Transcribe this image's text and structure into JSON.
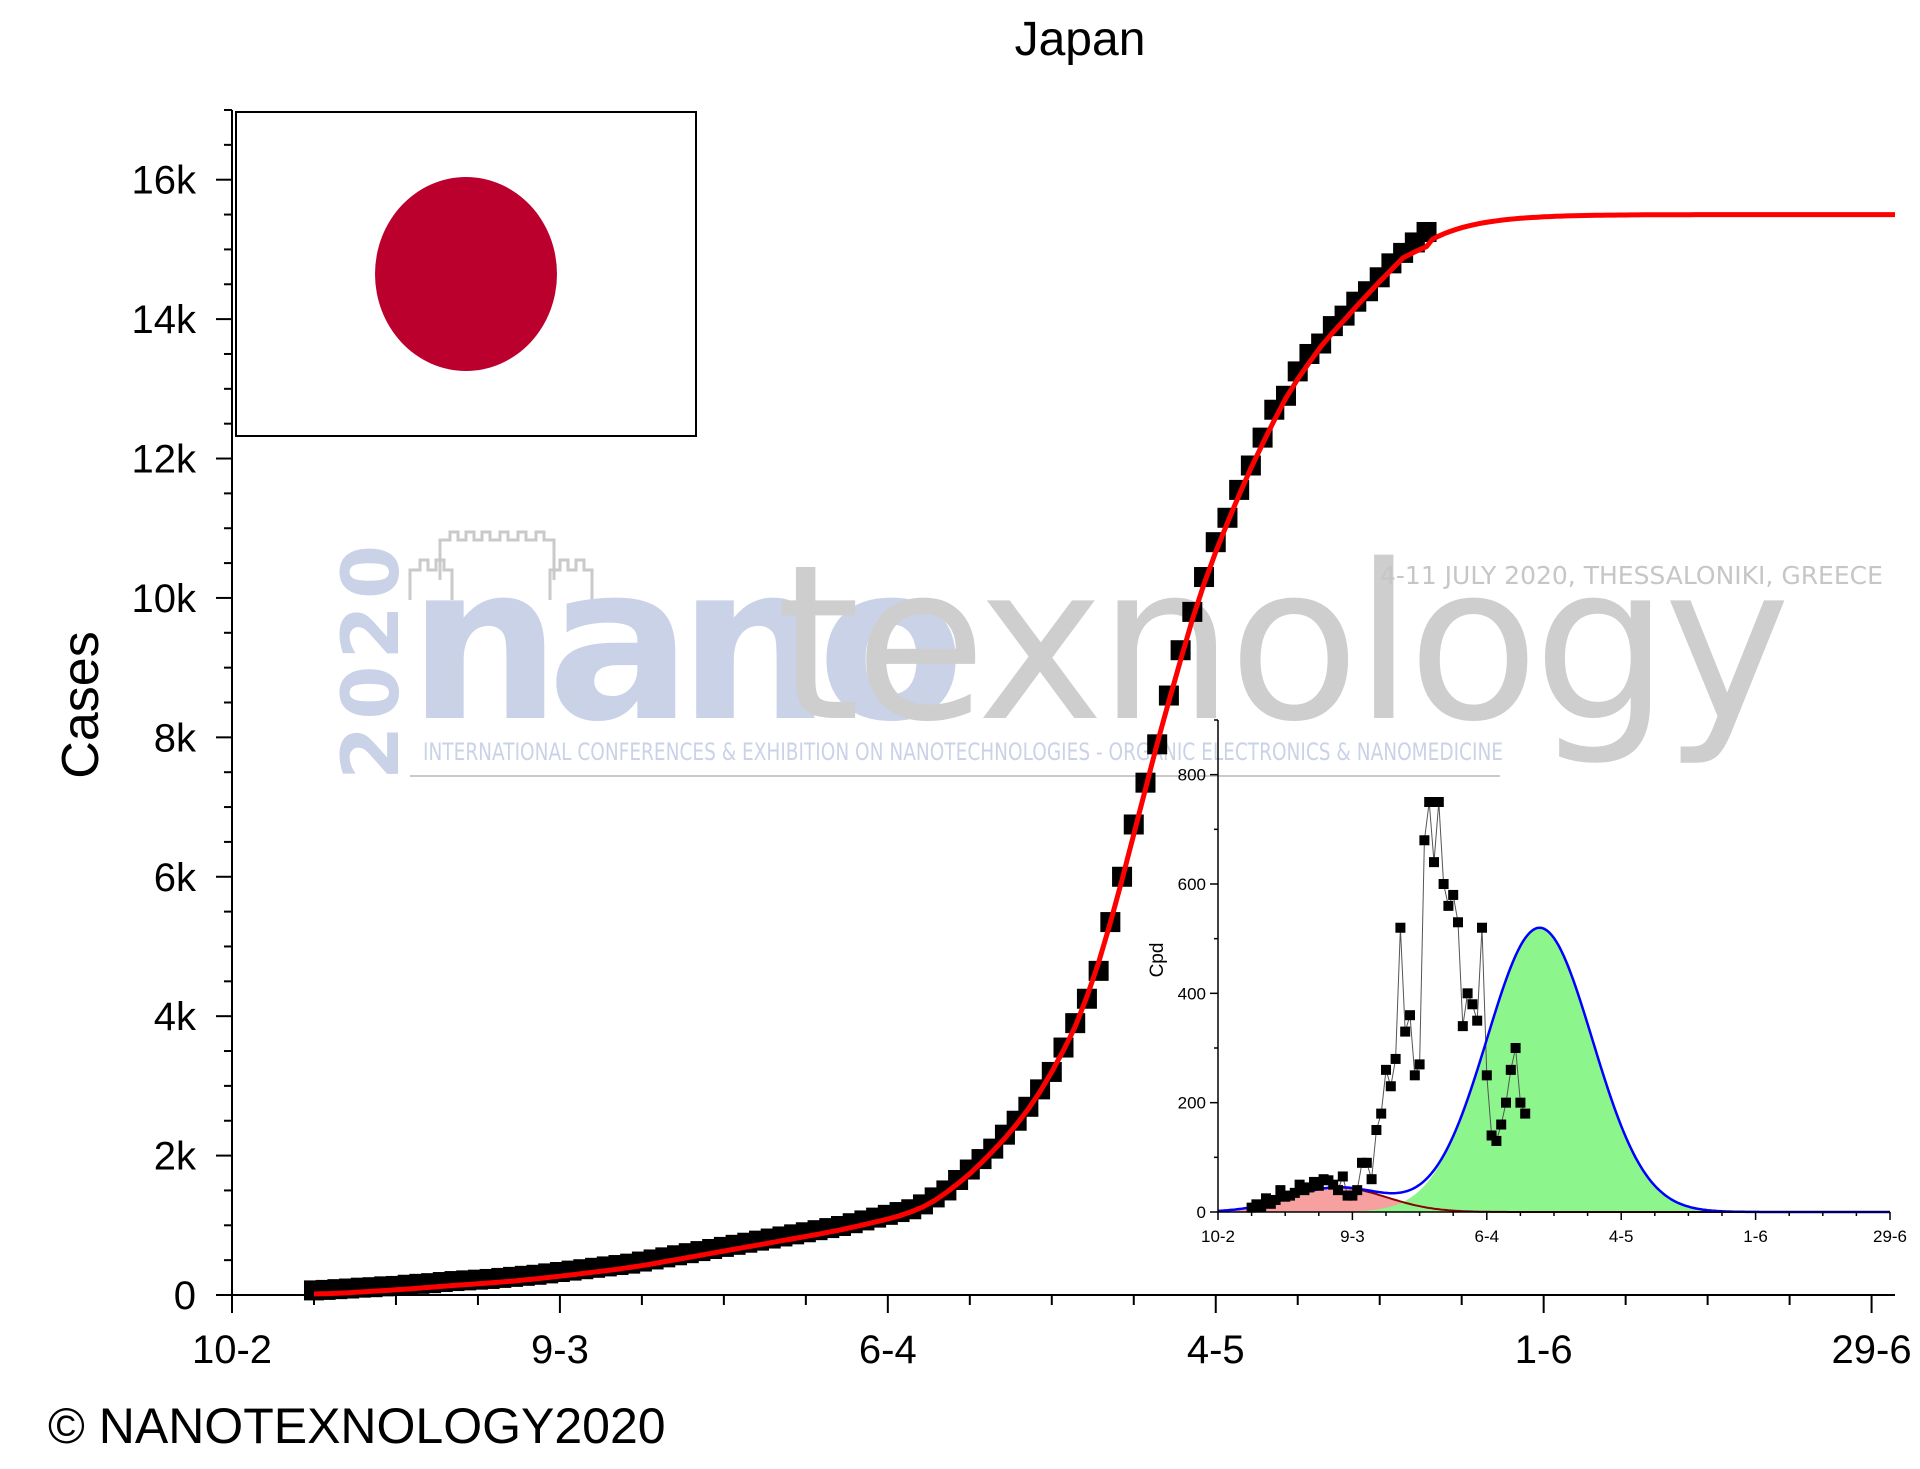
{
  "copyright": "© NANOTEXNOLOGY2020",
  "watermark": {
    "year": "2020",
    "brand_part1": "nano",
    "brand_part2": "texnology",
    "event": "4-11 JULY 2020, THESSALONIKI, GREECE",
    "subtitle": "INTERNATIONAL CONFERENCES & EXHIBITION ON NANOTECHNOLOGIES - ORGANIC ELECTRONICS & NANOMEDICINE"
  },
  "flag": {
    "background": "#ffffff",
    "disc": "#bc002d"
  },
  "colors": {
    "fit": "#ff0000",
    "points": "#000000",
    "inset_fit": "#0000ff",
    "peak1_fill": "#f6a0a0",
    "peak2_fill": "#8cf58c",
    "peak1_line": "#8b0000"
  },
  "chart_data": [
    {
      "type": "scatter",
      "title": "Japan",
      "xlabel": "",
      "ylabel": "Cases",
      "x_ticks": [
        "10-2",
        "9-3",
        "6-4",
        "4-5",
        "1-6",
        "29-6"
      ],
      "y_ticks": [
        "0",
        "2k",
        "4k",
        "6k",
        "8k",
        "10k",
        "12k",
        "14k",
        "16k"
      ],
      "xlim": [
        "10-2",
        "1-7"
      ],
      "ylim": [
        0,
        17000
      ],
      "series": [
        {
          "kind": "points",
          "x_start": "17-2",
          "values": [
            66,
            73,
            84,
            93,
            105,
            112,
            124,
            130,
            147,
            160,
            170,
            186,
            200,
            210,
            220,
            230,
            245,
            260,
            275,
            290,
            310,
            330,
            350,
            370,
            390,
            410,
            430,
            450,
            480,
            510,
            540,
            570,
            600,
            630,
            660,
            690,
            720,
            750,
            780,
            810,
            840,
            870,
            900,
            930,
            960,
            990,
            1030,
            1070,
            1110,
            1150,
            1190,
            1230,
            1300,
            1400,
            1500,
            1650,
            1800,
            1950,
            2100,
            2300,
            2500,
            2700,
            2950,
            3200,
            3550,
            3900,
            4250,
            4650,
            5350,
            6000,
            6750,
            7350,
            7900,
            8600,
            9250,
            9800,
            10300,
            10800,
            11150,
            11550,
            11900,
            12300,
            12700,
            12900,
            13250,
            13500,
            13650,
            13900,
            14050,
            14250,
            14400,
            14600,
            14800,
            14950,
            15100,
            15250
          ]
        },
        {
          "kind": "fit",
          "x_start": "17-2",
          "x_end": "1-7",
          "plateau": 15500
        }
      ]
    },
    {
      "type": "scatter",
      "title": "",
      "xlabel": "",
      "ylabel": "Cpd",
      "x_ticks": [
        "10-2",
        "9-3",
        "6-4",
        "4-5",
        "1-6",
        "29-6"
      ],
      "y_ticks": [
        "0",
        "200",
        "400",
        "600",
        "800"
      ],
      "ylim": [
        0,
        900
      ],
      "series": [
        {
          "kind": "points",
          "x_start": "17-2",
          "values": [
            8,
            14,
            10,
            25,
            15,
            22,
            40,
            28,
            30,
            35,
            50,
            40,
            45,
            55,
            48,
            60,
            58,
            50,
            40,
            65,
            30,
            30,
            40,
            90,
            90,
            60,
            150,
            180,
            260,
            230,
            280,
            520,
            330,
            360,
            250,
            270,
            680,
            750,
            640,
            750,
            600,
            560,
            580,
            530,
            340,
            400,
            380,
            350,
            520,
            250,
            140,
            130,
            160,
            200,
            260,
            300,
            200,
            180
          ]
        },
        {
          "kind": "gaussian",
          "name": "peak1",
          "center": "6-3",
          "height": 45,
          "sigma_days": 10
        },
        {
          "kind": "gaussian",
          "name": "peak2",
          "center": "17-4",
          "height": 520,
          "sigma_days": 11
        }
      ]
    }
  ]
}
